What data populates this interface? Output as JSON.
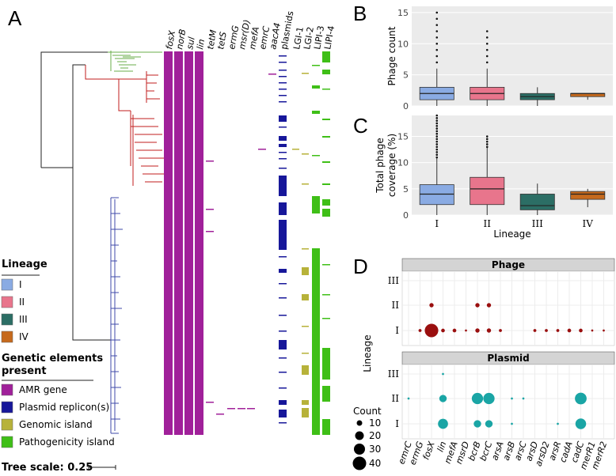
{
  "panels": {
    "A": "A",
    "B": "B",
    "C": "C",
    "D": "D"
  },
  "colors": {
    "amr": "#a0209a",
    "plasmid": "#17179a",
    "genomic": "#b7b23a",
    "pathogenicity": "#3fbf17",
    "lineage1": "#8aabe3",
    "lineage2": "#e8758c",
    "lineage3": "#2c6e65",
    "lineage4": "#c66a1d",
    "tree1": "#3f4aa8",
    "tree2": "#c21d1d",
    "tree3": "#6aae4a",
    "phage": "#9a0f0f",
    "plasmidDot": "#1aa5a5"
  },
  "heatmap": {
    "amr_columns": [
      "fosX",
      "norB",
      "sul",
      "lin",
      "tetM",
      "tetS",
      "ermG",
      "msr(D)",
      "mefA",
      "emrC",
      "aacA4"
    ],
    "plasmids_label": "plasmids",
    "island_columns": [
      "LGI-1",
      "LGI-2",
      "LIPI-3",
      "LIPI-4"
    ]
  },
  "legend": {
    "lineage_title": "Lineage",
    "lineages": [
      "I",
      "II",
      "III",
      "IV"
    ],
    "genetic_title_1": "Genetic elements",
    "genetic_title_2": "present",
    "genetic": [
      "AMR gene",
      "Plasmid replicon(s)",
      "Genomic island",
      "Pathogenicity island"
    ],
    "tree_scale": "Tree scale: 0.25"
  },
  "panel_b": {
    "ylabel": "Phage count",
    "yticks": [
      "0",
      "5",
      "10",
      "15"
    ]
  },
  "panel_c": {
    "ylabel_1": "Total phage",
    "ylabel_2": "coverage (%)",
    "yticks": [
      "0",
      "5",
      "10",
      "15"
    ],
    "xticks": [
      "I",
      "II",
      "III",
      "IV"
    ],
    "xlabel": "Lineage"
  },
  "panel_d": {
    "phage_strip": "Phage",
    "plasmid_strip": "Plasmid",
    "ylabel": "Lineage",
    "ylevels": [
      "III",
      "II",
      "I"
    ],
    "genes": [
      "emrC",
      "ermG",
      "fosX",
      "lin",
      "mefA",
      "msrD",
      "bcrB",
      "bcrC",
      "arsA",
      "arsB",
      "arsC",
      "arsD",
      "arsD2",
      "arsR",
      "cadA",
      "cadC",
      "merR1",
      "merR2"
    ],
    "count_title": "Count",
    "count_values": [
      "10",
      "20",
      "30",
      "40"
    ]
  },
  "chart_data": [
    {
      "type": "box",
      "title": "Phage count",
      "categories": [
        "I",
        "II",
        "III",
        "IV"
      ],
      "series": [
        {
          "name": "I",
          "q1": 1,
          "median": 2,
          "q3": 3,
          "min": 0,
          "max": 6
        },
        {
          "name": "II",
          "q1": 1,
          "median": 2,
          "q3": 3,
          "min": 0,
          "max": 6
        },
        {
          "name": "III",
          "q1": 1,
          "median": 1.5,
          "q3": 2,
          "min": 0,
          "max": 3
        },
        {
          "name": "IV",
          "q1": 1.5,
          "median": 2,
          "q3": 2,
          "min": 1,
          "max": 2
        }
      ],
      "ylim": [
        0,
        16
      ]
    },
    {
      "type": "box",
      "title": "Total phage coverage (%)",
      "categories": [
        "I",
        "II",
        "III",
        "IV"
      ],
      "series": [
        {
          "name": "I",
          "q1": 2,
          "median": 4,
          "q3": 5.8,
          "min": 0,
          "max": 11
        },
        {
          "name": "II",
          "q1": 2,
          "median": 5,
          "q3": 7.2,
          "min": 0,
          "max": 13
        },
        {
          "name": "III",
          "q1": 1,
          "median": 1.8,
          "q3": 4,
          "min": 0,
          "max": 6
        },
        {
          "name": "IV",
          "q1": 3,
          "median": 4,
          "q3": 4.5,
          "min": 1.5,
          "max": 5
        }
      ],
      "ylim": [
        0,
        19
      ]
    },
    {
      "type": "scatter",
      "title": "Phage",
      "points": [
        {
          "gene": "fosX",
          "lineage": "I",
          "count": 40
        },
        {
          "gene": "fosX",
          "lineage": "II",
          "count": 4
        },
        {
          "gene": "ermG",
          "lineage": "I",
          "count": 2
        },
        {
          "gene": "lin",
          "lineage": "I",
          "count": 3
        },
        {
          "gene": "mefA",
          "lineage": "I",
          "count": 3
        },
        {
          "gene": "msrD",
          "lineage": "I",
          "count": 1
        },
        {
          "gene": "bcrB",
          "lineage": "I",
          "count": 4
        },
        {
          "gene": "bcrB",
          "lineage": "II",
          "count": 4
        },
        {
          "gene": "bcrC",
          "lineage": "I",
          "count": 4
        },
        {
          "gene": "bcrC",
          "lineage": "II",
          "count": 4
        },
        {
          "gene": "arsA",
          "lineage": "I",
          "count": 2
        },
        {
          "gene": "arsD",
          "lineage": "I",
          "count": 2
        },
        {
          "gene": "arsD2",
          "lineage": "I",
          "count": 2
        },
        {
          "gene": "arsR",
          "lineage": "I",
          "count": 2
        },
        {
          "gene": "cadA",
          "lineage": "I",
          "count": 3
        },
        {
          "gene": "cadC",
          "lineage": "I",
          "count": 3
        },
        {
          "gene": "merR1",
          "lineage": "I",
          "count": 1
        },
        {
          "gene": "merR2",
          "lineage": "I",
          "count": 1
        }
      ]
    },
    {
      "type": "scatter",
      "title": "Plasmid",
      "points": [
        {
          "gene": "emrC",
          "lineage": "II",
          "count": 1
        },
        {
          "gene": "lin",
          "lineage": "III",
          "count": 1
        },
        {
          "gene": "lin",
          "lineage": "II",
          "count": 12
        },
        {
          "gene": "lin",
          "lineage": "I",
          "count": 22
        },
        {
          "gene": "bcrB",
          "lineage": "II",
          "count": 28
        },
        {
          "gene": "bcrB",
          "lineage": "I",
          "count": 12
        },
        {
          "gene": "bcrC",
          "lineage": "II",
          "count": 28
        },
        {
          "gene": "bcrC",
          "lineage": "I",
          "count": 12
        },
        {
          "gene": "arsB",
          "lineage": "II",
          "count": 1
        },
        {
          "gene": "arsB",
          "lineage": "I",
          "count": 1
        },
        {
          "gene": "arsC",
          "lineage": "II",
          "count": 1
        },
        {
          "gene": "arsR",
          "lineage": "I",
          "count": 1
        },
        {
          "gene": "cadC",
          "lineage": "II",
          "count": 30
        },
        {
          "gene": "cadC",
          "lineage": "I",
          "count": 25
        }
      ]
    }
  ]
}
